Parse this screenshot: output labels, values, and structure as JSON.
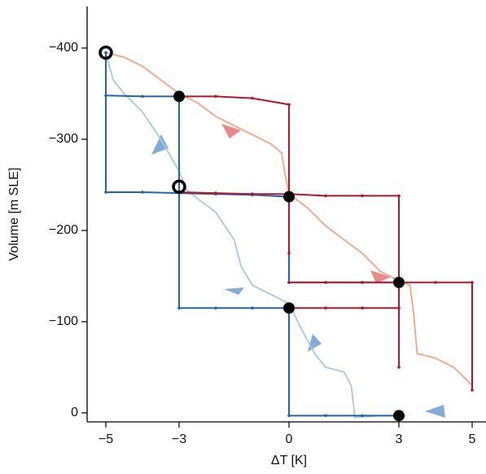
{
  "chart_data": {
    "type": "line",
    "xlabel": "ΔT [K]",
    "ylabel": "Volume [m SLE]",
    "xlim": [
      -5.5,
      5.35
    ],
    "ylim": [
      10,
      -445
    ],
    "xticks": [
      {
        "value": -5,
        "label": "−5"
      },
      {
        "value": -3,
        "label": "−3"
      },
      0,
      3,
      5
    ],
    "yticks": [
      0,
      {
        "value": -100,
        "label": "−100"
      },
      {
        "value": -200,
        "label": "−200"
      },
      {
        "value": -300,
        "label": "−300"
      },
      {
        "value": -400,
        "label": "−400"
      }
    ],
    "series": [
      {
        "color": "#f4a582",
        "marker": "none",
        "x": [
          -5,
          -4.5,
          -4,
          -3.5,
          -3,
          -2.5,
          -2,
          -1.5,
          -1,
          -0.5,
          -0.2,
          -0.1,
          0,
          0.5,
          1,
          1.5,
          2,
          2.5,
          3,
          3.3,
          3.4,
          3.5,
          4,
          4.5,
          5
        ],
        "y": [
          -395,
          -390,
          -380,
          -365,
          -350,
          -340,
          -325,
          -315,
          -305,
          -295,
          -285,
          -260,
          -240,
          -225,
          -205,
          -190,
          -175,
          -155,
          -145,
          -140,
          -110,
          -65,
          -60,
          -50,
          -30
        ]
      },
      {
        "color": "#a6c8e4",
        "marker": "none",
        "x": [
          -5,
          -4.8,
          -4.5,
          -4,
          -3.5,
          -3,
          -2.8,
          -2.5,
          -2,
          -1.5,
          -1.3,
          -1,
          -0.5,
          0,
          0.3,
          0.7,
          1,
          1.5,
          1.7,
          1.8,
          2.5,
          3
        ],
        "y": [
          -395,
          -365,
          -350,
          -330,
          -300,
          -265,
          -245,
          -235,
          -220,
          -190,
          -160,
          -140,
          -130,
          -120,
          -95,
          -65,
          -50,
          -45,
          -30,
          5,
          3,
          3
        ]
      },
      {
        "color": "#2166ac",
        "marker": "dot",
        "x": [
          -5,
          -5,
          -4,
          -3,
          -2,
          -1,
          0,
          0,
          1,
          2,
          3,
          null,
          -5,
          -4,
          -3,
          -3,
          -2,
          -1,
          0,
          0,
          1,
          2,
          3
        ],
        "y": [
          -395,
          -242,
          -242,
          -241,
          -240,
          -239,
          -237,
          -143,
          -143,
          -143,
          -143,
          null,
          -348,
          -347,
          -347,
          -115,
          -115,
          -115,
          -115,
          3,
          3,
          3,
          3
        ]
      },
      {
        "color": "#b2182b",
        "marker": "dot",
        "x": [
          -3,
          -2,
          -1,
          0,
          0,
          null,
          -3,
          -2,
          -1,
          0,
          1,
          2,
          3,
          3,
          null,
          0,
          1,
          2,
          3,
          4,
          5,
          5,
          null,
          0,
          1,
          2,
          3
        ],
        "y": [
          -347,
          -347,
          -345,
          -338,
          -175,
          null,
          -242,
          -241,
          -240,
          -240,
          -238,
          -238,
          -238,
          -50,
          null,
          -143,
          -143,
          -143,
          -143,
          -143,
          -143,
          -25,
          null,
          -115,
          -115,
          -115,
          -115
        ]
      },
      {
        "color": "#000000",
        "marker": "filled",
        "x": [
          -3,
          0,
          3,
          0,
          3
        ],
        "y": [
          -347,
          -237,
          -143,
          -115,
          3
        ]
      },
      {
        "color": "#000000",
        "marker": "open",
        "x": [
          -5,
          -3
        ],
        "y": [
          -395,
          -248
        ]
      }
    ]
  }
}
